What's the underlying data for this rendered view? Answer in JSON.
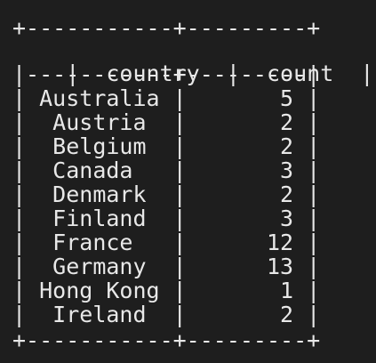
{
  "table": {
    "border_top": "+-----------+---------+",
    "border_header_sep": "|-----------+---------|",
    "border_bottom": "+-----------+---------+",
    "headers": {
      "country": "country",
      "count": "count"
    },
    "rows": [
      {
        "country": "Australia",
        "count": "5"
      },
      {
        "country": "Austria",
        "count": "2"
      },
      {
        "country": "Belgium",
        "count": "2"
      },
      {
        "country": "Canada",
        "count": "3"
      },
      {
        "country": "Denmark",
        "count": "2"
      },
      {
        "country": "Finland",
        "count": "3"
      },
      {
        "country": "France",
        "count": "12"
      },
      {
        "country": "Germany",
        "count": "13"
      },
      {
        "country": "Hong Kong",
        "count": "1"
      },
      {
        "country": "Ireland",
        "count": "2"
      }
    ]
  },
  "colors": {
    "background": "#1e1e1e",
    "text": "#e8e8e8"
  }
}
